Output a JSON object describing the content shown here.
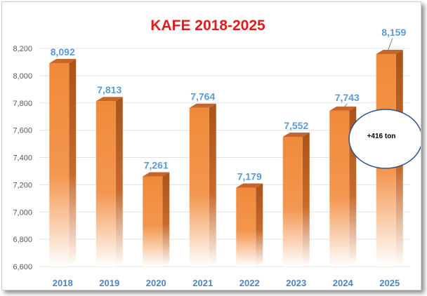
{
  "chart_data": {
    "type": "bar",
    "title": "KAFE 2018-2025",
    "categories": [
      "2018",
      "2019",
      "2020",
      "2021",
      "2022",
      "2023",
      "2024",
      "2025"
    ],
    "values": [
      8092,
      7813,
      7261,
      7764,
      7179,
      7552,
      7743,
      8159
    ],
    "value_labels": [
      "8,092",
      "7,813",
      "7,261",
      "7,764",
      "7,179",
      "7,552",
      "7,743",
      "8,159"
    ],
    "ylim": [
      6600,
      8200
    ],
    "yticks": [
      6600,
      6800,
      7000,
      7200,
      7400,
      7600,
      7800,
      8000,
      8200
    ],
    "ytick_labels": [
      "6,600",
      "6,800",
      "7,000",
      "7,200",
      "7,400",
      "7,600",
      "7,800",
      "8,000",
      "8,200"
    ],
    "xlabel": "",
    "ylabel": "",
    "grid": true,
    "annotation": {
      "text": "+416 ton"
    },
    "colors": {
      "bar": "#f08a3a",
      "bar_dark": "#a9531b",
      "bar_top": "#c5672a",
      "title": "#e41b1b",
      "value_label": "#5b9bd5",
      "x_label": "#4a86c5",
      "axis_text": "#595959",
      "grid": "#e3e3e3",
      "ellipse_border": "#2e4f8a"
    }
  }
}
